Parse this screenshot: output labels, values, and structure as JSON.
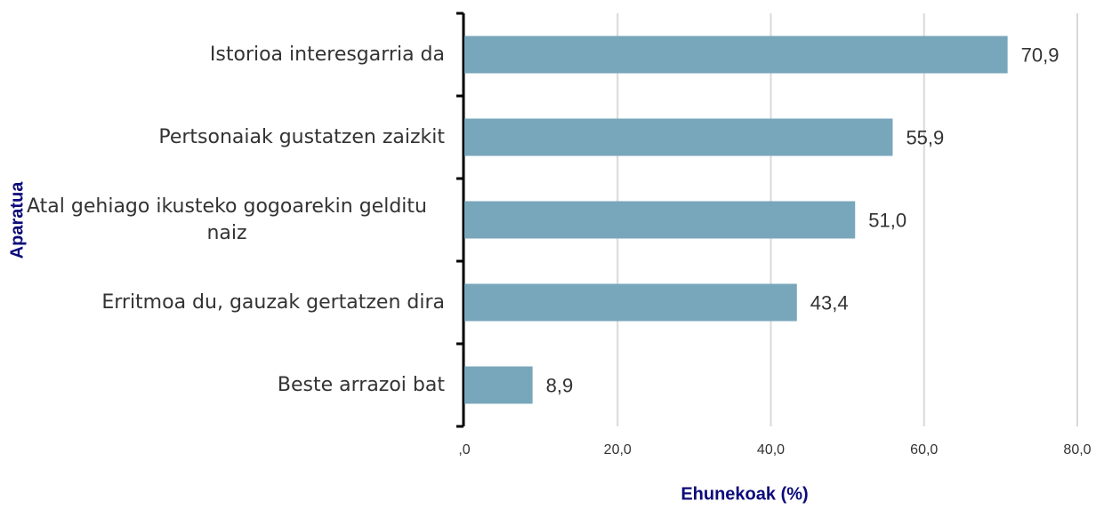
{
  "chart_data": {
    "type": "bar",
    "orientation": "horizontal",
    "categories": [
      "Istorioa interesgarria da",
      "Pertsonaiak gustatzen zaizkit",
      "Atal gehiago ikusteko gogoarekin gelditu naiz",
      "Erritmoa du, gauzak gertatzen dira",
      "Beste arrazoi bat"
    ],
    "values": [
      70.9,
      55.9,
      51.0,
      43.4,
      8.9
    ],
    "value_labels": [
      "70,9",
      "55,9",
      "51,0",
      "43,4",
      "8,9"
    ],
    "color": "#78a6bb",
    "xlim": [
      0,
      80
    ],
    "xticks": [
      {
        "value": 0,
        "label": ",0"
      },
      {
        "value": 20,
        "label": "20,0"
      },
      {
        "value": 40,
        "label": "40,0"
      },
      {
        "value": 60,
        "label": "60,0"
      },
      {
        "value": 80,
        "label": "80,0"
      }
    ],
    "grid": true,
    "x_label": "Ehunekoak (%)",
    "y_label": "Aparatua"
  }
}
